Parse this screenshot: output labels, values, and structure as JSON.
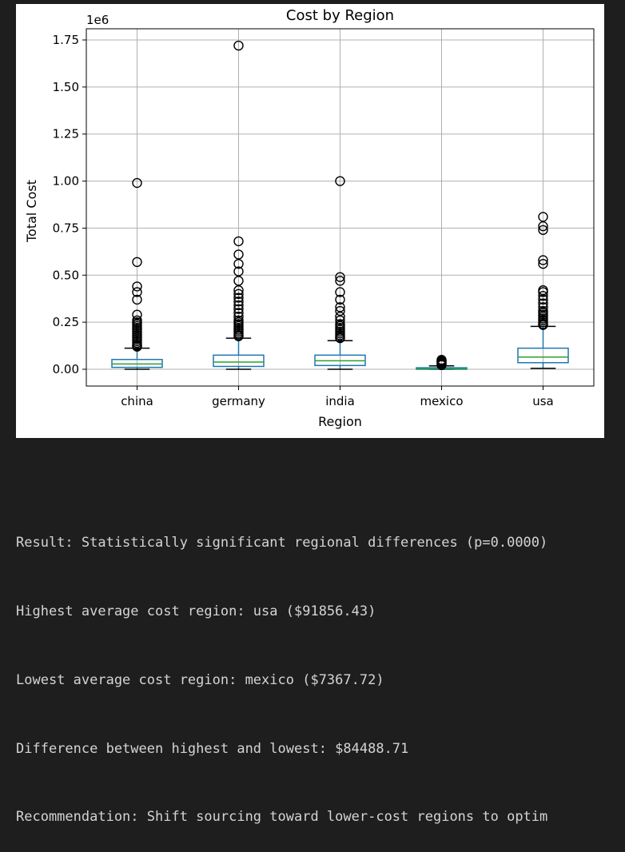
{
  "chart_data": {
    "type": "box",
    "title": "Cost by Region",
    "xlabel": "Region",
    "ylabel": "Total Cost",
    "offset_label": "1e6",
    "ylim": [
      -0.09,
      1.8
    ],
    "yticks": [
      0.0,
      0.25,
      0.5,
      0.75,
      1.0,
      1.25,
      1.5,
      1.75
    ],
    "ytick_labels": [
      "0.00",
      "0.25",
      "0.50",
      "0.75",
      "1.00",
      "1.25",
      "1.50",
      "1.75"
    ],
    "grid": true,
    "colors": {
      "box": "#1f77b4",
      "median": "#2ca02c",
      "outlier": "#000000",
      "grid": "#b0b0b0"
    },
    "categories": [
      "china",
      "germany",
      "india",
      "mexico",
      "usa"
    ],
    "boxes": [
      {
        "name": "china",
        "whislo": 0.0,
        "q1": 0.01,
        "med": 0.028,
        "q3": 0.052,
        "whishi": 0.112,
        "fliers": [
          0.99,
          0.57,
          0.44,
          0.41,
          0.37,
          0.29,
          0.26,
          0.25,
          0.24,
          0.23,
          0.22,
          0.21,
          0.2,
          0.19,
          0.18,
          0.17,
          0.16,
          0.15,
          0.14,
          0.13,
          0.125,
          0.12
        ]
      },
      {
        "name": "germany",
        "whislo": 0.0,
        "q1": 0.015,
        "med": 0.038,
        "q3": 0.075,
        "whishi": 0.165,
        "fliers": [
          1.72,
          0.68,
          0.61,
          0.56,
          0.52,
          0.47,
          0.42,
          0.4,
          0.38,
          0.36,
          0.34,
          0.32,
          0.3,
          0.28,
          0.26,
          0.25,
          0.24,
          0.23,
          0.22,
          0.21,
          0.2,
          0.19,
          0.18,
          0.175
        ]
      },
      {
        "name": "india",
        "whislo": 0.0,
        "q1": 0.02,
        "med": 0.045,
        "q3": 0.075,
        "whishi": 0.152,
        "fliers": [
          1.0,
          0.49,
          0.47,
          0.41,
          0.37,
          0.33,
          0.31,
          0.28,
          0.26,
          0.24,
          0.23,
          0.22,
          0.21,
          0.2,
          0.19,
          0.18,
          0.17,
          0.165
        ]
      },
      {
        "name": "mexico",
        "whislo": 0.0,
        "q1": 0.0,
        "med": 0.004,
        "q3": 0.008,
        "whishi": 0.018,
        "fliers": [
          0.05,
          0.046,
          0.042,
          0.038,
          0.034,
          0.03,
          0.026,
          0.022
        ]
      },
      {
        "name": "usa",
        "whislo": 0.005,
        "q1": 0.035,
        "med": 0.065,
        "q3": 0.112,
        "whishi": 0.228,
        "fliers": [
          0.81,
          0.76,
          0.74,
          0.58,
          0.56,
          0.42,
          0.41,
          0.39,
          0.37,
          0.35,
          0.33,
          0.31,
          0.3,
          0.29,
          0.28,
          0.27,
          0.26,
          0.25,
          0.24,
          0.235
        ]
      }
    ]
  },
  "console": {
    "lines": [
      "Result: Statistically significant regional differences (p=0.0000)",
      "Highest average cost region: usa ($91856.43)",
      "Lowest average cost region: mexico ($7367.72)",
      "Difference between highest and lowest: $84488.71",
      "Recommendation: Shift sourcing toward lower-cost regions to optim"
    ]
  }
}
